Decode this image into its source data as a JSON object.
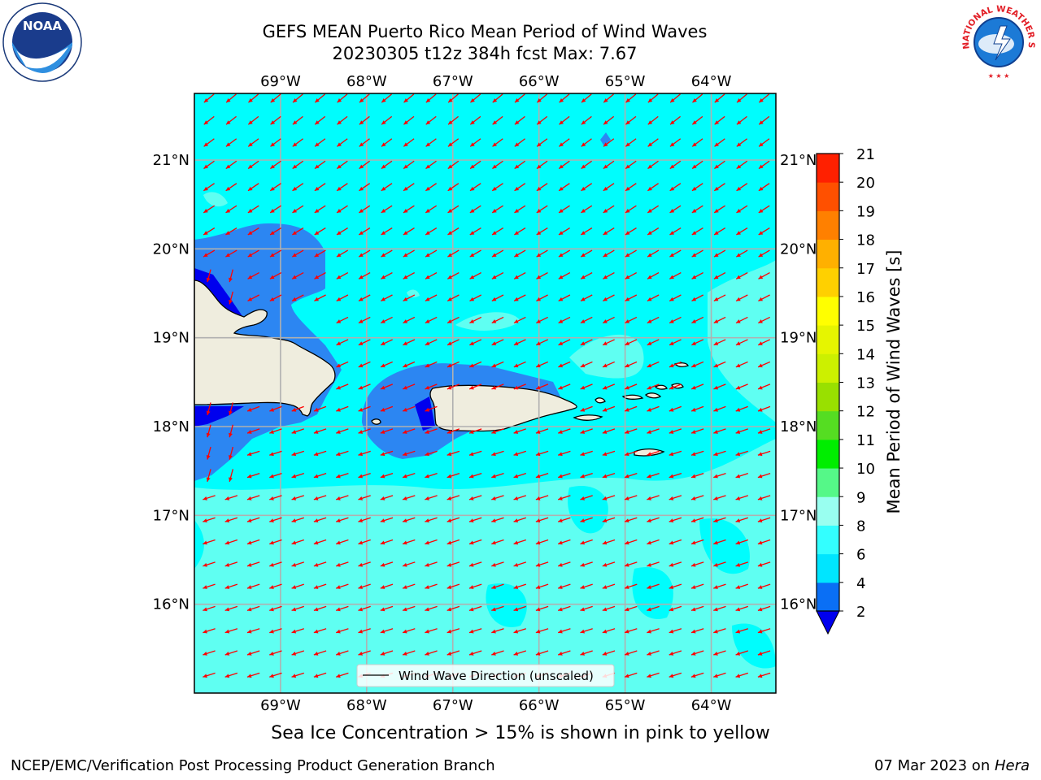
{
  "title": {
    "line1": "GEFS MEAN Puerto Rico Mean Period of Wind Waves",
    "line2": "20230305 t12z 384h fcst   Max: 7.67"
  },
  "logos": {
    "left": {
      "icon": "noaa-logo-icon",
      "text": "NOAA"
    },
    "right": {
      "icon": "nws-logo-icon",
      "text": "NATIONAL WEATHER SERVICE"
    }
  },
  "map": {
    "lon_labels": [
      "69°W",
      "68°W",
      "67°W",
      "66°W",
      "65°W",
      "64°W"
    ],
    "lat_labels": [
      "21°N",
      "20°N",
      "19°N",
      "18°N",
      "17°N",
      "16°N"
    ],
    "lon_range": [
      -70,
      -63.25
    ],
    "lat_range": [
      15.0,
      21.75
    ],
    "legend": "Wind Wave Direction (unscaled)",
    "arrow_color": "#ff0000",
    "land_color": "#efedde",
    "grid_color": "#b0b0b0"
  },
  "colorbar": {
    "label": "Mean Period of Wind Waves [s]",
    "ticks": [
      "2",
      "4",
      "6",
      "8",
      "9",
      "10",
      "11",
      "12",
      "13",
      "14",
      "15",
      "16",
      "17",
      "18",
      "19",
      "20",
      "21"
    ],
    "colors": [
      "#0a6ff5",
      "#00e5ff",
      "#33ffff",
      "#99fff0",
      "#55f888",
      "#00ee00",
      "#55dd22",
      "#99e000",
      "#ccf000",
      "#e6f500",
      "#ffff00",
      "#ffd000",
      "#ffb000",
      "#ff8000",
      "#ff5000",
      "#ff2000"
    ],
    "under_color": "#0000ee"
  },
  "footer": {
    "sea_ice": "Sea Ice Concentration > 15% is shown in pink to yellow",
    "credit": "NCEP/EMC/Verification Post Processing Product Generation Branch",
    "date": "07 Mar 2023 on ",
    "host": "Hera"
  }
}
